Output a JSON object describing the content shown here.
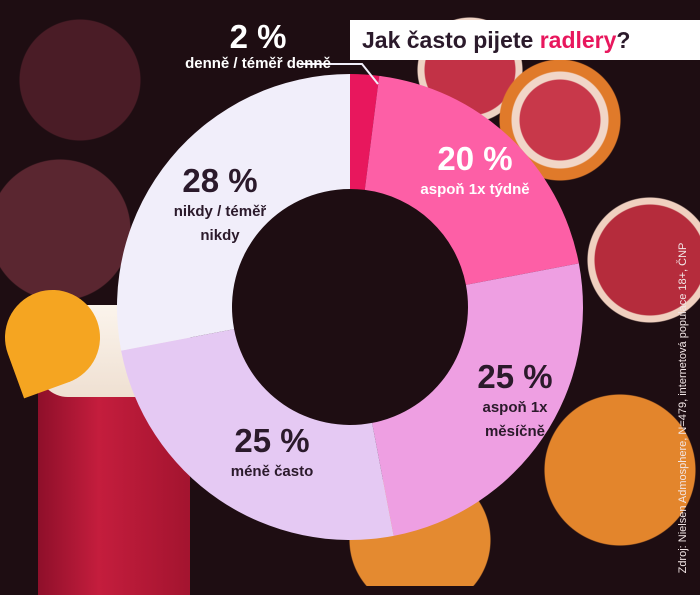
{
  "title": {
    "prefix": "Jak často pijete ",
    "highlight": "radlery",
    "suffix": "?"
  },
  "source": "Zdroj: Nielsen Admosphere, N=479, internetová populace 18+, ČNP",
  "chart_data": {
    "type": "pie",
    "donut": true,
    "start": "top, clockwise",
    "slices": [
      {
        "label": "denně / téměř denně",
        "value": 2,
        "value_label": "2 %",
        "color": "#e8175d"
      },
      {
        "label": "aspoň 1x týdně",
        "value": 20,
        "value_label": "20 %",
        "color": "#fd5fa6"
      },
      {
        "label": "aspoň 1x měsíčně",
        "value": 25,
        "value_label": "25 %",
        "color": "#ee9fe2"
      },
      {
        "label": "méně často",
        "value": 25,
        "value_label": "25 %",
        "color": "#e5c9f3"
      },
      {
        "label": "nikdy / téměř nikdy",
        "value": 28,
        "value_label": "28 %",
        "color": "#f1eefa"
      }
    ],
    "label_lines": {
      "2": [
        "denně / téměř denně"
      ],
      "20": [
        "aspoň 1x týdně"
      ],
      "25a": [
        "aspoň 1x",
        "měsíčně"
      ],
      "25b": [
        "méně často"
      ],
      "28": [
        "nikdy / téměř",
        "nikdy"
      ]
    }
  }
}
